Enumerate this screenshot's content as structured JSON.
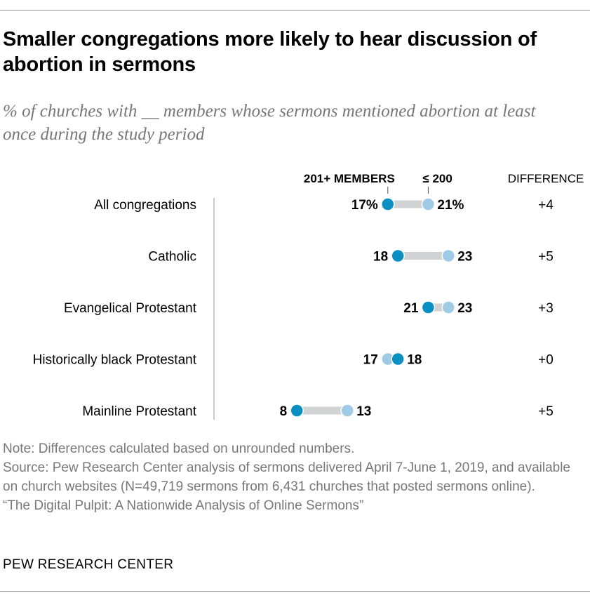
{
  "title": "Smaller congregations more likely to hear discussion of abortion in sermons",
  "subtitle": "% of churches with __ members whose sermons mentioned abortion at least once during the study period",
  "notes": {
    "note": "Note: Differences calculated based on unrounded numbers.",
    "source": "Source: Pew Research Center analysis of sermons delivered April 7-June 1, 2019, and available on church websites (N=49,719 sermons from 6,431 churches that posted sermons online).",
    "report": "“The Digital Pulpit: A Nationwide Analysis of Online Sermons”"
  },
  "brand": "PEW RESEARCH CENTER",
  "chart_data": {
    "type": "dot",
    "categories": [
      "All congregations",
      "Catholic",
      "Evangelical Protestant",
      "Historically black Protestant",
      "Mainline Protestant"
    ],
    "series": [
      {
        "name": "201+ MEMBERS",
        "values": [
          17,
          18,
          21,
          18,
          8
        ],
        "color": "#0a8fc2"
      },
      {
        "name": "≤ 200",
        "values": [
          21,
          23,
          23,
          17,
          13
        ],
        "color": "#a0cbe6"
      }
    ],
    "value_labels": {
      "201+ MEMBERS": [
        "17%",
        "18",
        "21",
        "18",
        "8"
      ],
      "≤ 200": [
        "21%",
        "23",
        "23",
        "17",
        "13"
      ]
    },
    "difference_header": "DIFFERENCE",
    "difference": [
      "+4",
      "+5",
      "+3",
      "+0",
      "+5"
    ],
    "connector_color": "#d1d2d4"
  }
}
